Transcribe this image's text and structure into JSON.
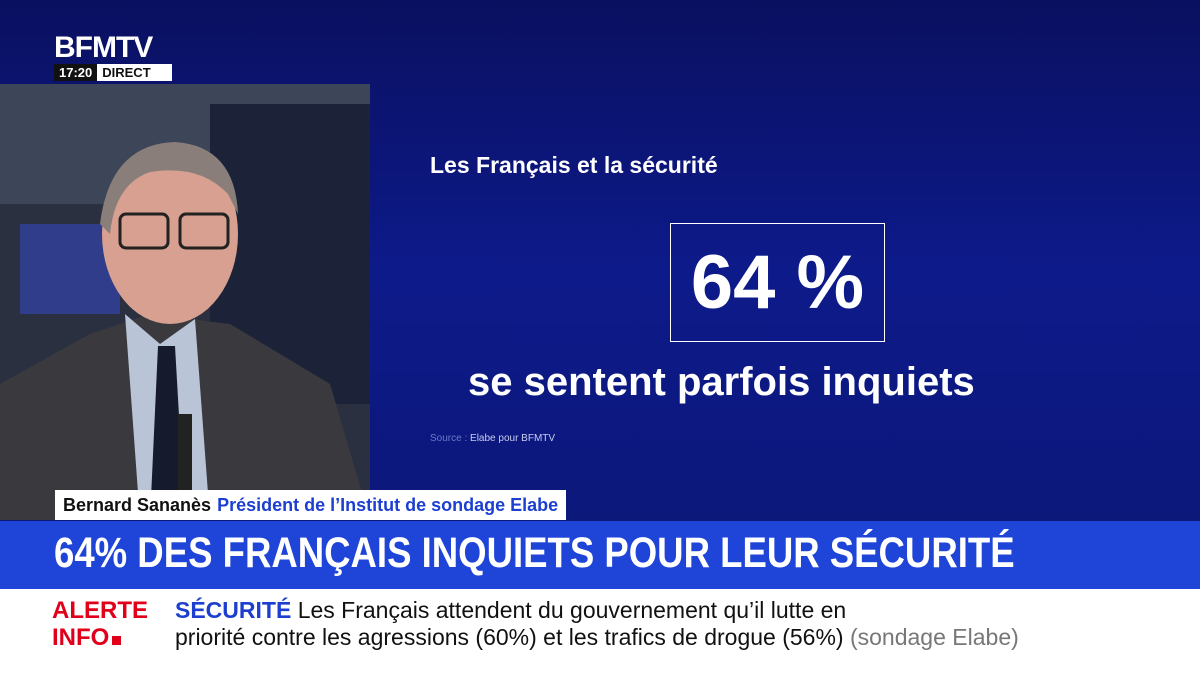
{
  "logo": {
    "brand": "BFMTV",
    "time": "17:20",
    "status": "DIRECT"
  },
  "infographic": {
    "title": "Les Français et la sécurité",
    "figure": "64 %",
    "caption": "se sentent parfois inquiets",
    "source_label": "Source :",
    "source": "Elabe pour BFMTV"
  },
  "speaker": {
    "name": "Bernard Sananès",
    "role": "Président de l’Institut de sondage Elabe"
  },
  "headline": "64% DES FRANÇAIS INQUIETS POUR LEUR SÉCURITÉ",
  "ticker": {
    "alert_line1": "ALERTE",
    "alert_line2": "INFO",
    "topic": "SÉCURITÉ",
    "line1": "Les Français attendent du gouvernement qu’il lutte en",
    "line2": "priorité contre les agressions (60%) et les trafics de drogue (56%)",
    "note": "(sondage Elabe)"
  }
}
